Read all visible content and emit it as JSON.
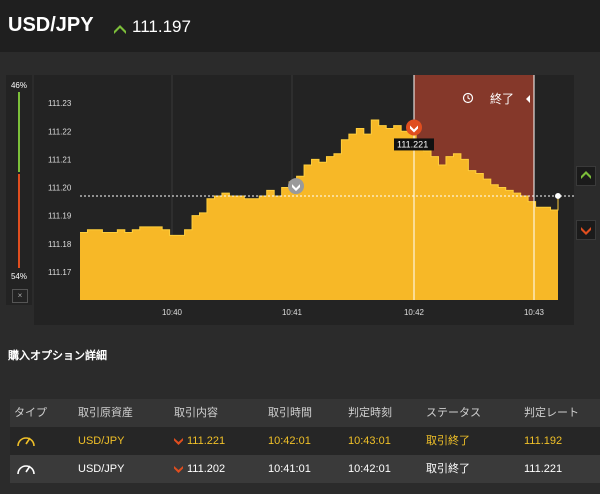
{
  "header": {
    "pair": "USD/JPY",
    "rate": "111.197",
    "direction_icon": "up-arrow-icon",
    "direction_color": "#7cbf3a"
  },
  "sentiment": {
    "high_label": "46%",
    "low_label": "54%",
    "close_label": "×",
    "high_color": "#7cbf3a",
    "low_color": "#e04e1f"
  },
  "chart_data": {
    "type": "area",
    "title": "",
    "xlabel": "",
    "ylabel": "",
    "x_tick_labels": [
      "10:40",
      "10:41",
      "10:42",
      "10:43"
    ],
    "y_tick_labels": [
      "111.17",
      "111.18",
      "111.19",
      "111.20",
      "111.21",
      "111.22",
      "111.23"
    ],
    "ylim": [
      111.16,
      111.24
    ],
    "grid": true,
    "area_color": "#f7b827",
    "series": [
      {
        "x": [
          0,
          3,
          6,
          9,
          12,
          15,
          18,
          21,
          24,
          27,
          30,
          33,
          36,
          39,
          42,
          45,
          48,
          51,
          54,
          57,
          60,
          63,
          66,
          69,
          72,
          75,
          78,
          81,
          84,
          87,
          90,
          93,
          96,
          99,
          102,
          105,
          108,
          111,
          114,
          117,
          120,
          123,
          126,
          129,
          132,
          135,
          138,
          141,
          144,
          147,
          150,
          153,
          156,
          159,
          162,
          165,
          168,
          171,
          174,
          177,
          180,
          183,
          186,
          189,
          192
        ],
        "y": [
          111.184,
          111.185,
          111.185,
          111.184,
          111.184,
          111.185,
          111.184,
          111.185,
          111.186,
          111.186,
          111.186,
          111.185,
          111.183,
          111.183,
          111.185,
          111.19,
          111.191,
          111.196,
          111.197,
          111.198,
          111.197,
          111.197,
          111.196,
          111.196,
          111.197,
          111.199,
          111.197,
          111.2,
          111.202,
          111.204,
          111.208,
          111.21,
          111.209,
          111.211,
          111.212,
          111.217,
          111.219,
          111.221,
          111.219,
          111.224,
          111.222,
          111.221,
          111.222,
          111.22,
          111.222,
          111.216,
          111.213,
          111.211,
          111.208,
          111.211,
          111.212,
          111.21,
          111.206,
          111.205,
          111.203,
          111.201,
          111.2,
          111.199,
          111.198,
          111.197,
          111.195,
          111.193,
          111.193,
          111.192,
          111.197
        ]
      }
    ],
    "current_rate": "111.197",
    "marker_label": "111.221",
    "expired_label": "終了",
    "expired_icon": "clock-history-icon"
  },
  "section": {
    "title": "購入オプション詳細"
  },
  "table": {
    "headers": [
      "タイプ",
      "取引原資産",
      "取引内容",
      "取引時間",
      "判定時刻",
      "ステータス",
      "判定レート"
    ],
    "rows": [
      {
        "type_icon": "gauge-icon",
        "asset": "USD/JPY",
        "direction_icon": "down-arrow-icon",
        "entry": "111.221",
        "time": "10:42:01",
        "judge_time": "10:43:01",
        "status": "取引終了",
        "judge_rate": "111.192"
      },
      {
        "type_icon": "gauge-icon",
        "asset": "USD/JPY",
        "direction_icon": "down-arrow-icon",
        "entry": "111.202",
        "time": "10:41:01",
        "judge_time": "10:42:01",
        "status": "取引終了",
        "judge_rate": "111.221"
      }
    ]
  }
}
